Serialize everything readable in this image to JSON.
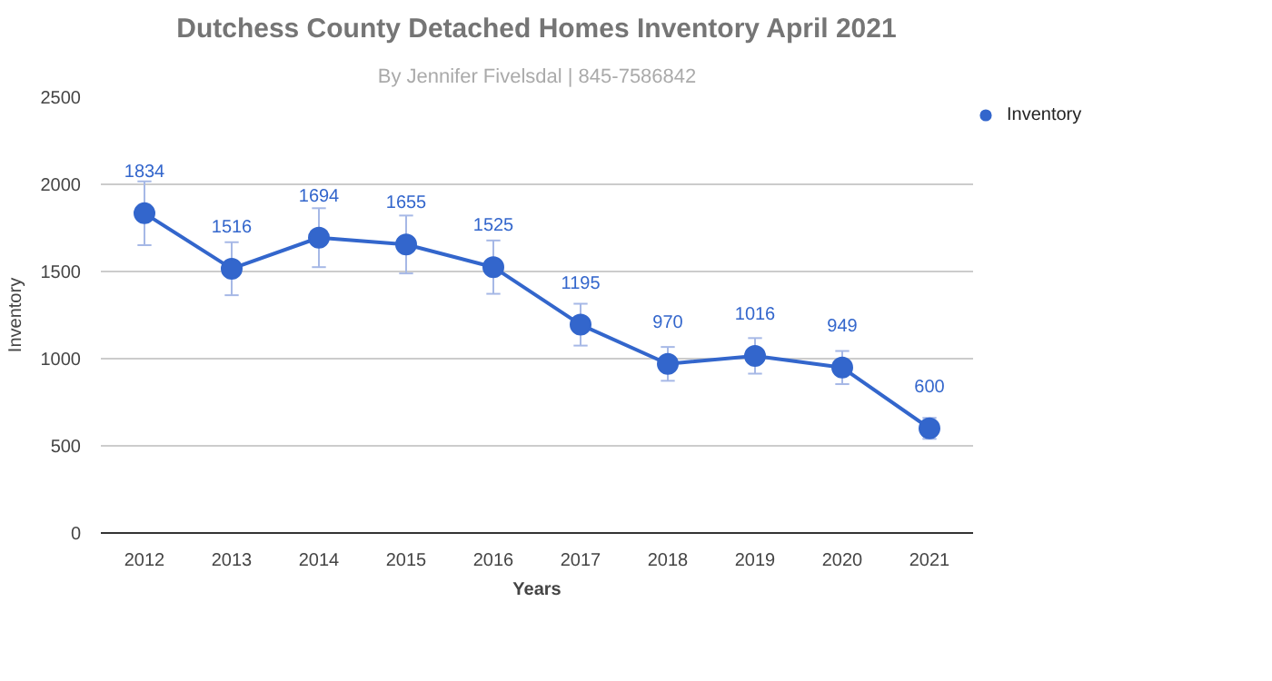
{
  "chart_data": {
    "type": "line",
    "title": "Dutchess County Detached Homes Inventory April 2021",
    "subtitle": "By Jennifer Fivelsdal | 845-7586842",
    "xlabel": "Years",
    "ylabel": "Inventory",
    "categories": [
      "2012",
      "2013",
      "2014",
      "2015",
      "2016",
      "2017",
      "2018",
      "2019",
      "2020",
      "2021"
    ],
    "series": [
      {
        "name": "Inventory",
        "color": "#3366cc",
        "values": [
          1834,
          1516,
          1694,
          1655,
          1525,
          1195,
          970,
          1016,
          949,
          600
        ],
        "errors": [
          183,
          152,
          169,
          166,
          153,
          120,
          97,
          102,
          95,
          60
        ]
      }
    ],
    "ylim": [
      0,
      2500
    ],
    "yticks": [
      0,
      500,
      1000,
      1500,
      2000,
      2500
    ],
    "grid": "y",
    "legend": "top right",
    "marker": "circle",
    "line_style": "solid",
    "data_labels": true
  }
}
